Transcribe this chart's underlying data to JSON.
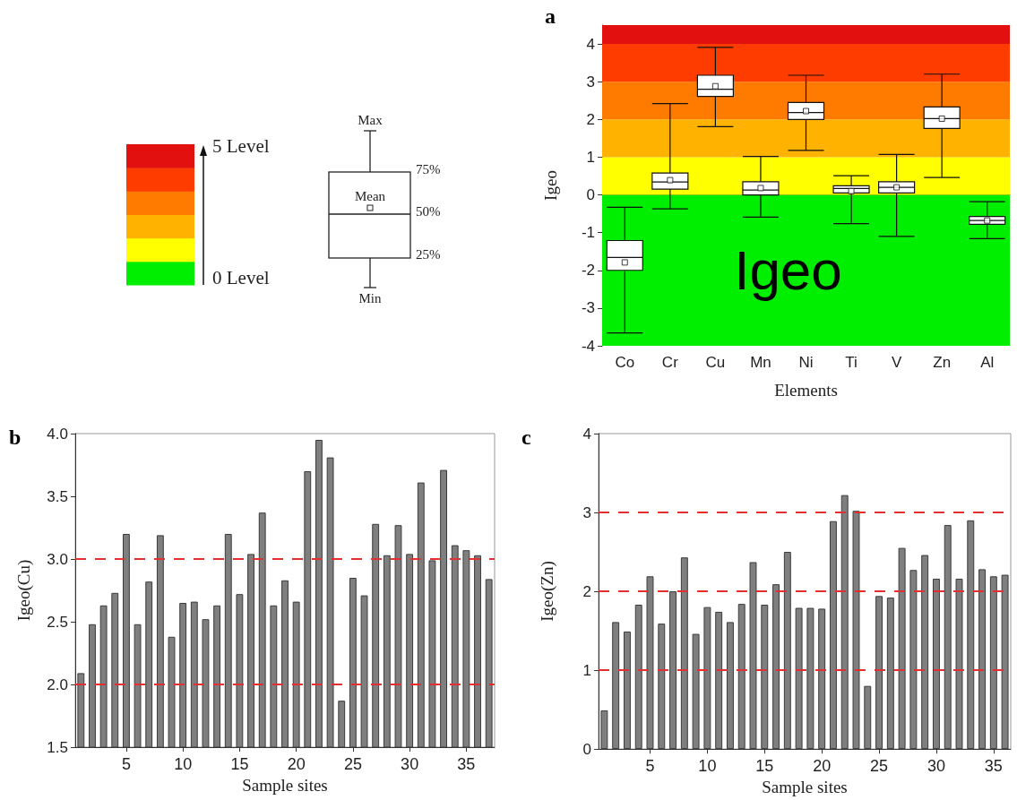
{
  "chart_data": [
    {
      "type": "box",
      "title": "a",
      "xlabel": "Elements",
      "ylabel": "Igeo",
      "categories": [
        "Co",
        "Cr",
        "Cu",
        "Mn",
        "Ni",
        "Ti",
        "V",
        "Zn",
        "Al"
      ],
      "boxes": [
        {
          "low": -3.66,
          "q1": -2.0,
          "median": -1.66,
          "q3": -1.21,
          "high": -0.33,
          "mean": -1.79
        },
        {
          "low": -0.37,
          "q1": 0.15,
          "median": 0.34,
          "q3": 0.58,
          "high": 2.42,
          "mean": 0.39
        },
        {
          "low": 1.81,
          "q1": 2.61,
          "median": 2.8,
          "q3": 3.17,
          "high": 3.91,
          "mean": 2.88
        },
        {
          "low": -0.59,
          "q1": 0.0,
          "median": 0.13,
          "q3": 0.35,
          "high": 1.02,
          "mean": 0.18
        },
        {
          "low": 1.18,
          "q1": 2.0,
          "median": 2.18,
          "q3": 2.45,
          "high": 3.17,
          "mean": 2.22
        },
        {
          "low": -0.76,
          "q1": 0.05,
          "median": 0.17,
          "q3": 0.24,
          "high": 0.51,
          "mean": 0.1
        },
        {
          "low": -1.1,
          "q1": 0.05,
          "median": 0.2,
          "q3": 0.35,
          "high": 1.07,
          "mean": 0.2
        },
        {
          "low": 0.46,
          "q1": 1.76,
          "median": 2.02,
          "q3": 2.33,
          "high": 3.2,
          "mean": 2.02
        },
        {
          "low": -1.16,
          "q1": -0.78,
          "median": -0.68,
          "q3": -0.57,
          "high": -0.18,
          "mean": -0.68
        }
      ],
      "ylim": [
        -4,
        4.5
      ],
      "yticks": [
        -4,
        -3,
        -2,
        -1,
        0,
        1,
        2,
        3,
        4
      ],
      "bands": [
        {
          "axis": "y",
          "from": -4,
          "to": 0,
          "color": "#00ee00"
        },
        {
          "axis": "y",
          "from": 0,
          "to": 1,
          "color": "#ffff00"
        },
        {
          "axis": "y",
          "from": 1,
          "to": 2,
          "color": "#ffb300"
        },
        {
          "axis": "y",
          "from": 2,
          "to": 3,
          "color": "#ff7b00"
        },
        {
          "axis": "y",
          "from": 3,
          "to": 4,
          "color": "#ff3c00"
        },
        {
          "axis": "y",
          "from": 4,
          "to": 4.5,
          "color": "#e31010"
        }
      ],
      "annotations": [
        "Igeo",
        "5 Level",
        "0 Level",
        "Max",
        "75%",
        "Mean",
        "50%",
        "25%",
        "Min"
      ]
    },
    {
      "type": "bar",
      "title": "b",
      "xlabel": "Sample sites",
      "ylabel": "Igeo(Cu)",
      "color": "#7f7f7f",
      "categories": [
        null,
        null,
        null,
        null,
        "5",
        null,
        null,
        null,
        null,
        "10",
        null,
        null,
        null,
        null,
        "15",
        null,
        null,
        null,
        null,
        "20",
        null,
        null,
        null,
        null,
        "25",
        null,
        null,
        null,
        null,
        "30",
        null,
        null,
        null,
        null,
        "35",
        null,
        null
      ],
      "values": [
        2.09,
        2.48,
        2.63,
        2.73,
        3.2,
        2.48,
        2.82,
        3.19,
        2.38,
        2.65,
        2.66,
        2.52,
        2.63,
        3.2,
        2.72,
        3.04,
        3.37,
        2.63,
        2.83,
        2.66,
        3.7,
        3.95,
        3.81,
        1.87,
        2.85,
        2.71,
        3.28,
        3.03,
        3.27,
        3.04,
        3.61,
        2.99,
        3.71,
        3.11,
        3.07,
        3.03,
        2.84
      ],
      "ylim": [
        1.5,
        4.0
      ],
      "yticks": [
        1.5,
        {
          "value": 2,
          "label": "2.0"
        },
        2.5,
        {
          "value": 3,
          "label": "3.0"
        },
        3.5,
        {
          "value": 4,
          "label": "4.0"
        }
      ],
      "ref_lines": [
        {
          "axis": "y",
          "value": 2,
          "color": "#e03030",
          "line_style": "dashed"
        },
        {
          "axis": "y",
          "value": 3,
          "color": "#e03030",
          "line_style": "dashed"
        }
      ]
    },
    {
      "type": "bar",
      "title": "c",
      "xlabel": "Sample sites",
      "ylabel": "Igeo(Zn)",
      "color": "#7f7f7f",
      "categories": [
        null,
        null,
        null,
        null,
        "5",
        null,
        null,
        null,
        null,
        "10",
        null,
        null,
        null,
        null,
        "15",
        null,
        null,
        null,
        null,
        "20",
        null,
        null,
        null,
        null,
        "25",
        null,
        null,
        null,
        null,
        "30",
        null,
        null,
        null,
        null,
        "35",
        null
      ],
      "values": [
        0.49,
        1.61,
        1.49,
        1.83,
        2.19,
        1.59,
        2.0,
        2.43,
        1.46,
        1.8,
        1.74,
        1.61,
        1.84,
        2.37,
        1.83,
        2.09,
        2.5,
        1.79,
        1.79,
        1.78,
        2.89,
        3.22,
        3.02,
        0.8,
        1.94,
        1.92,
        2.55,
        2.27,
        2.46,
        2.16,
        2.84,
        2.16,
        2.9,
        2.28,
        2.19,
        2.21
      ],
      "ylim": [
        0,
        4
      ],
      "yticks": [
        0,
        1,
        2,
        3,
        4
      ],
      "ref_lines": [
        {
          "axis": "y",
          "value": 1,
          "color": "#e03030",
          "line_style": "dashed"
        },
        {
          "axis": "y",
          "value": 2,
          "color": "#e03030",
          "line_style": "dashed"
        },
        {
          "axis": "y",
          "value": 3,
          "color": "#e03030",
          "line_style": "dashed"
        }
      ]
    }
  ]
}
